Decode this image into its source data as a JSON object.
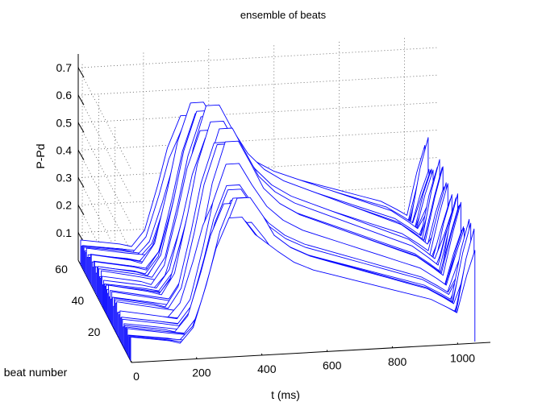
{
  "chart_data": {
    "type": "line",
    "projection": "3d-waterfall",
    "title": "ensemble of beats",
    "xlabel": "t (ms)",
    "ylabel": "beat number",
    "zlabel": "P-Pd",
    "xlim": [
      0,
      1100
    ],
    "ylim": [
      0,
      65
    ],
    "zlim": [
      0,
      0.75
    ],
    "x_ticks": [
      0,
      200,
      400,
      600,
      800,
      1000
    ],
    "y_ticks": [
      20,
      40,
      60
    ],
    "z_ticks": [
      0.1,
      0.2,
      0.3,
      0.4,
      0.5,
      0.6,
      0.7
    ],
    "grid": true,
    "line_color": "#0000ff",
    "edge_color": "#000000",
    "n_beats": 62,
    "beat_waveform_template": {
      "t": [
        0,
        60,
        120,
        170,
        210,
        250,
        280,
        320,
        360,
        400,
        450,
        500,
        560,
        620,
        680,
        740,
        800,
        860,
        920,
        970,
        1000,
        1030,
        1055
      ],
      "p": [
        0.08,
        0.07,
        0.06,
        0.05,
        0.1,
        0.24,
        0.36,
        0.46,
        0.46,
        0.4,
        0.34,
        0.3,
        0.27,
        0.25,
        0.23,
        0.21,
        0.19,
        0.17,
        0.15,
        0.12,
        0.1,
        0.22,
        0.3
      ]
    },
    "beat_amplitude_range": [
      0.3,
      0.72
    ]
  }
}
